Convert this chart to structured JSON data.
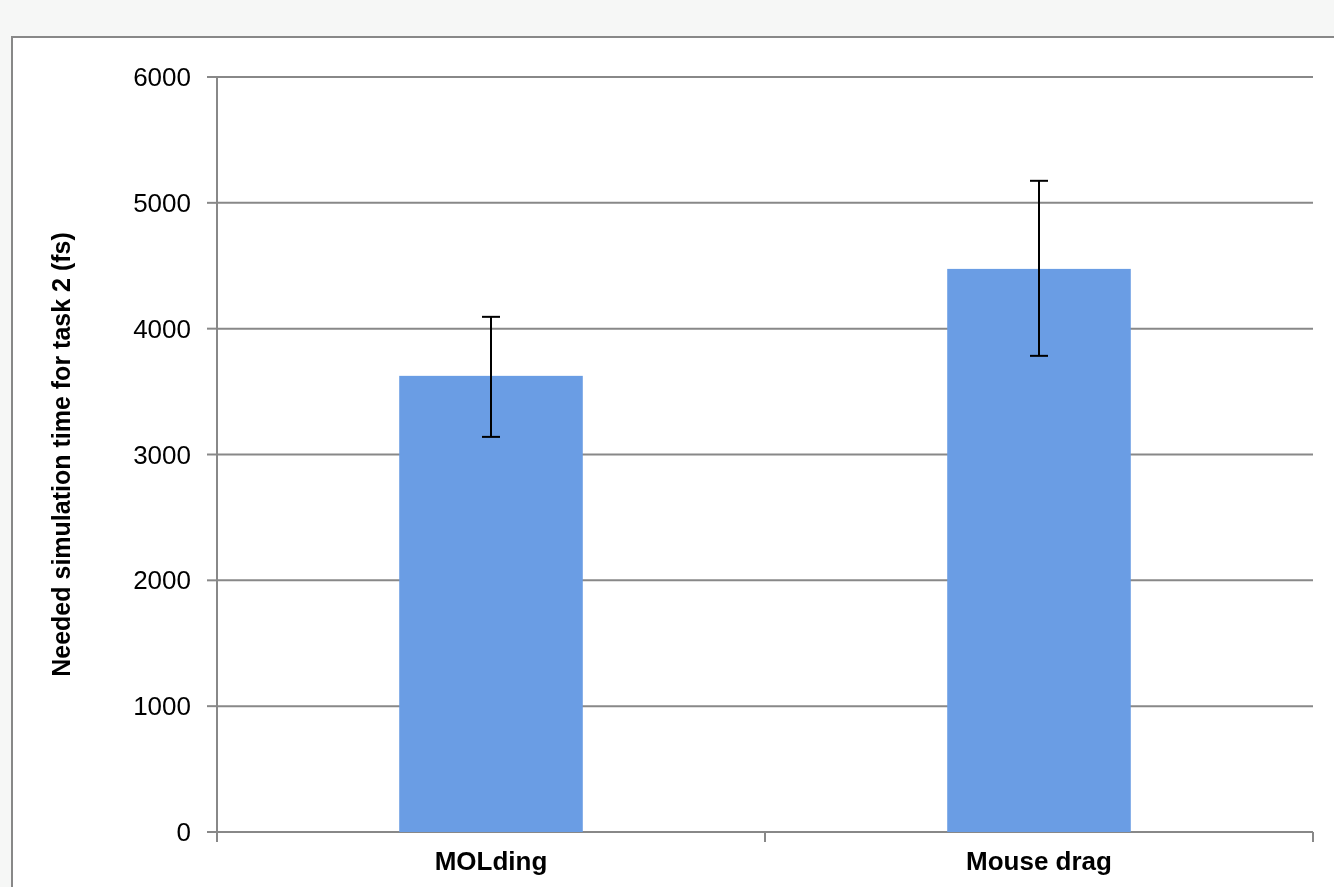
{
  "chart_data": {
    "type": "bar",
    "categories": [
      "MOLding",
      "Mouse drag"
    ],
    "values": [
      3625,
      4475
    ],
    "errors": [
      [
        3140,
        4094
      ],
      [
        3784,
        5175
      ]
    ],
    "color": "#6a9de4",
    "ylabel": "Needed simulation time for task 2 (fs)",
    "ylim": [
      0,
      6000
    ],
    "yticks": [
      0,
      1000,
      2000,
      3000,
      4000,
      5000,
      6000
    ],
    "grid": "y"
  }
}
